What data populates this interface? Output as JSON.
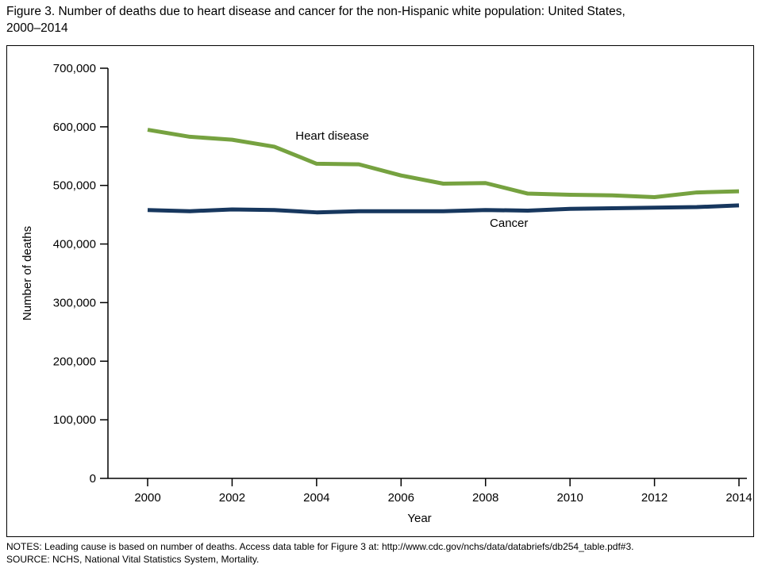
{
  "figure": {
    "title_line1": "Figure 3. Number of deaths due to heart disease and cancer for the non-Hispanic white population: United States,",
    "title_line2": "2000–2014",
    "notes_line1": "NOTES: Leading cause is based on number of deaths. Access data table for Figure 3 at: http://www.cdc.gov/nchs/data/databriefs/db254_table.pdf#3.",
    "notes_line2": "SOURCE: NCHS, National Vital Statistics System, Mortality."
  },
  "chart_data": {
    "type": "line",
    "title": "",
    "xlabel": "Year",
    "ylabel": "Number of deaths",
    "x": [
      2000,
      2001,
      2002,
      2003,
      2004,
      2005,
      2006,
      2007,
      2008,
      2009,
      2010,
      2011,
      2012,
      2013,
      2014
    ],
    "series": [
      {
        "name": "Heart disease",
        "color": "#76A240",
        "stroke_width": 5,
        "values": [
          595000,
          583000,
          578000,
          566000,
          537000,
          536000,
          517000,
          503000,
          504000,
          486000,
          484000,
          483000,
          480000,
          488000,
          490000
        ]
      },
      {
        "name": "Cancer",
        "color": "#17375E",
        "stroke_width": 5,
        "values": [
          458000,
          456000,
          459000,
          458000,
          454000,
          456000,
          456000,
          456000,
          458000,
          457000,
          460000,
          461000,
          462000,
          463000,
          466000
        ]
      }
    ],
    "ylim": [
      0,
      700000
    ],
    "ytick_step": 100000,
    "yticks": [
      0,
      100000,
      200000,
      300000,
      400000,
      500000,
      600000,
      700000
    ],
    "xticks": [
      2000,
      2002,
      2004,
      2006,
      2008,
      2010,
      2012,
      2014
    ],
    "grid": false,
    "legend_position": "inline-annotations",
    "annotations": [
      {
        "text": "Heart disease",
        "x": 2003.5,
        "y": 578000
      },
      {
        "text": "Cancer",
        "x": 2008.1,
        "y": 429000
      }
    ]
  }
}
